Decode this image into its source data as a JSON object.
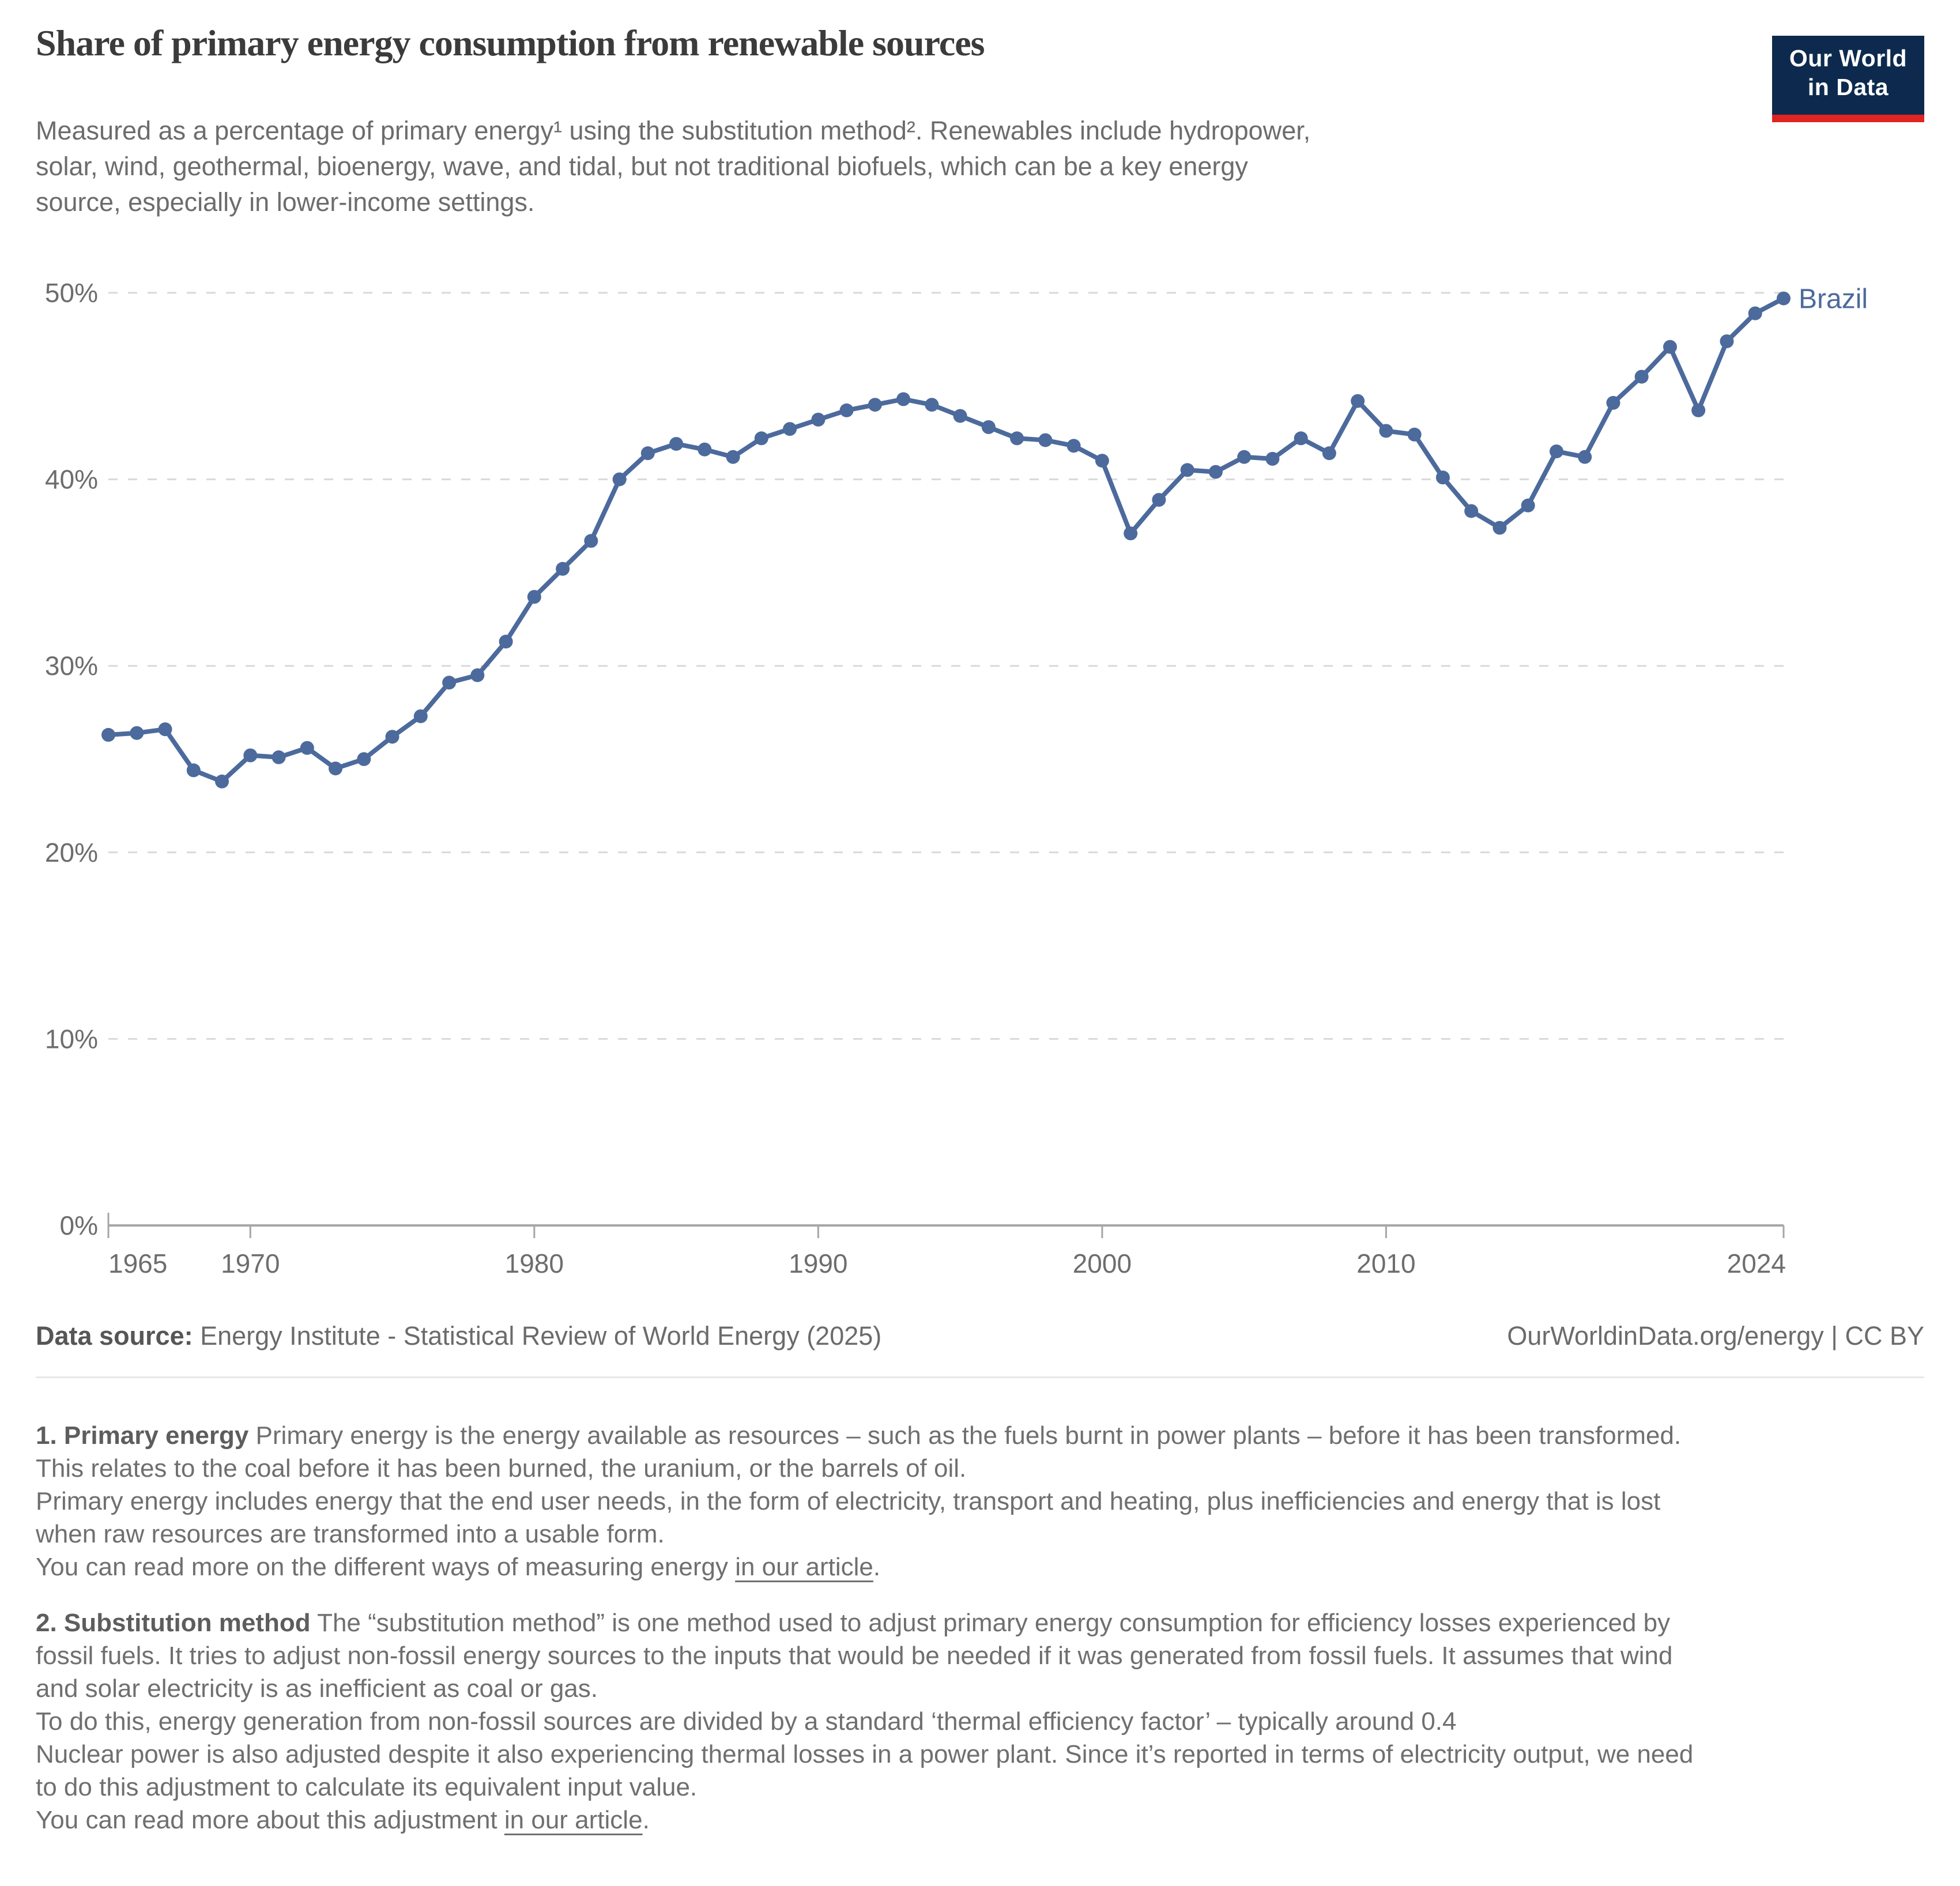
{
  "header": {
    "title": "Share of primary energy consumption from renewable sources",
    "subtitle_lines": {
      "l1": "Measured as a percentage of primary energy¹ using the substitution method². Renewables include hydropower,",
      "l2": "solar, wind, geothermal, bioenergy, wave, and tidal, but not traditional biofuels, which can be a key energy",
      "l3": "source, especially in lower-income settings."
    },
    "logo": {
      "line1": "Our World",
      "line2": "in Data"
    }
  },
  "chart_data": {
    "type": "line",
    "title": "Share of primary energy consumption from renewable sources",
    "xlabel": "",
    "ylabel": "",
    "xlim": [
      1965,
      2024
    ],
    "ylim": [
      0,
      50
    ],
    "yticks": [
      0,
      10,
      20,
      30,
      40,
      50
    ],
    "ytick_labels": [
      "0%",
      "10%",
      "20%",
      "30%",
      "40%",
      "50%"
    ],
    "xticks": [
      1965,
      1970,
      1980,
      1990,
      2000,
      2010,
      2024
    ],
    "xtick_labels": [
      "1965",
      "1970",
      "1980",
      "1990",
      "2000",
      "2010",
      "2024"
    ],
    "grid": "horizontal-dashed",
    "legend": "line-end-label",
    "end_label": "Brazil",
    "series": [
      {
        "name": "Brazil",
        "color": "#4c6a9c",
        "years": [
          1965,
          1966,
          1967,
          1968,
          1969,
          1970,
          1971,
          1972,
          1973,
          1974,
          1975,
          1976,
          1977,
          1978,
          1979,
          1980,
          1981,
          1982,
          1983,
          1984,
          1985,
          1986,
          1987,
          1988,
          1989,
          1990,
          1991,
          1992,
          1993,
          1994,
          1995,
          1996,
          1997,
          1998,
          1999,
          2000,
          2001,
          2002,
          2003,
          2004,
          2005,
          2006,
          2007,
          2008,
          2009,
          2010,
          2011,
          2012,
          2013,
          2014,
          2015,
          2016,
          2017,
          2018,
          2019,
          2020,
          2021,
          2022,
          2023,
          2024
        ],
        "values": [
          26.3,
          26.4,
          26.6,
          24.4,
          23.8,
          25.2,
          25.1,
          25.6,
          24.5,
          25.0,
          26.2,
          27.3,
          29.1,
          29.5,
          31.3,
          33.7,
          35.2,
          36.7,
          40.0,
          41.4,
          41.9,
          41.6,
          41.2,
          42.2,
          42.7,
          43.2,
          43.7,
          44.0,
          44.3,
          44.0,
          43.4,
          42.8,
          42.2,
          42.1,
          41.8,
          41.0,
          37.1,
          38.9,
          40.5,
          40.4,
          41.2,
          41.1,
          42.2,
          41.4,
          44.2,
          42.6,
          42.4,
          40.1,
          38.3,
          37.4,
          38.6,
          41.5,
          41.2,
          44.1,
          45.5,
          47.1,
          43.7,
          47.4,
          48.9,
          49.7
        ]
      }
    ]
  },
  "footer": {
    "source_label": "Data source:",
    "source_text": " Energy Institute - Statistical Review of World Energy (2025)",
    "credit": "OurWorldinData.org/energy | CC BY"
  },
  "footnotes": {
    "fn1": {
      "lead": "1. Primary energy",
      "l1": " Primary energy is the energy available as resources – such as the fuels burnt in power plants – before it has been transformed.",
      "l2": "This relates to the coal before it has been burned, the uranium, or the barrels of oil.",
      "l3": "Primary energy includes energy that the end user needs, in the form of electricity, transport and heating, plus inefficiencies and energy that is lost",
      "l4": "when raw resources are transformed into a usable form.",
      "l5_pre": "You can read more on the different ways of measuring energy ",
      "l5_link": "in our article",
      "l5_post": "."
    },
    "fn2": {
      "lead": "2. Substitution method",
      "l1": " The “substitution method” is one method used to adjust primary energy consumption for efficiency losses experienced by",
      "l2": "fossil fuels. It tries to adjust non-fossil energy sources to the inputs that would be needed if it was generated from fossil fuels. It assumes that wind",
      "l3": "and solar electricity is as inefficient as coal or gas.",
      "l4": "To do this, energy generation from non-fossil sources are divided by a standard ‘thermal efficiency factor’ – typically around 0.4",
      "l5": "Nuclear power is also adjusted despite it also experiencing thermal losses in a power plant. Since it’s reported in terms of electricity output, we need",
      "l6": "to do this adjustment to calculate its equivalent input value.",
      "l7_pre": "You can read more about this adjustment ",
      "l7_link": "in our article",
      "l7_post": "."
    }
  },
  "colors": {
    "accent_line": "#4c6a9c",
    "title_text": "#3b3b3b",
    "body_text": "#6c6c6c",
    "axis_text": "#6d6d6d",
    "gridline": "#d9d9d9",
    "axis_line": "#a6a6a6",
    "logo_navy": "#0d2a4e",
    "logo_red": "#e02421"
  }
}
